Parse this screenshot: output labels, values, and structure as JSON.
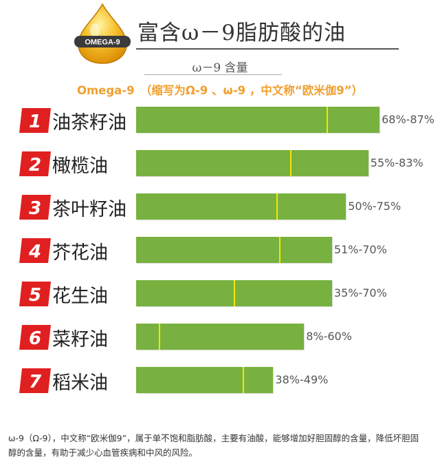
{
  "badge": {
    "text": "OMEGA-9"
  },
  "chart_data": {
    "type": "bar",
    "title": "富含ω－9脂肪酸的油",
    "subtitle": "ω－9 含量",
    "headline": "Omega-9　（缩写为Ω-9 、ω-9 ，中文称“欧米伽9”）",
    "unit": "%",
    "xlim": [
      0,
      100
    ],
    "categories": [
      "油茶籽油",
      "橄榄油",
      "茶叶籽油",
      "芥花油",
      "花生油",
      "菜籽油",
      "稻米油"
    ],
    "ranks": [
      "1",
      "2",
      "3",
      "4",
      "5",
      "6",
      "7"
    ],
    "range_labels": [
      "68%-87%",
      "55%-83%",
      "50%-75%",
      "51%-70%",
      "35%-70%",
      "8%-60%",
      "38%-49%"
    ],
    "series": [
      {
        "min": [
          68,
          55,
          50,
          51,
          35,
          8,
          38
        ],
        "max": [
          87,
          83,
          75,
          70,
          70,
          60,
          49
        ]
      }
    ],
    "colors": {
      "bar": "#78b13f",
      "marker": "#f5e600",
      "rank": "#e02020",
      "headline": "#f0a030"
    }
  },
  "caption": "ω-9（Ω-9），中文称“欧米伽9”，属于单不饱和脂肪酸，主要有油酸，能够增加好胆固醇的含量，降低坏胆固醇的含量，有助于减少心血管疾病和中风的风险。"
}
